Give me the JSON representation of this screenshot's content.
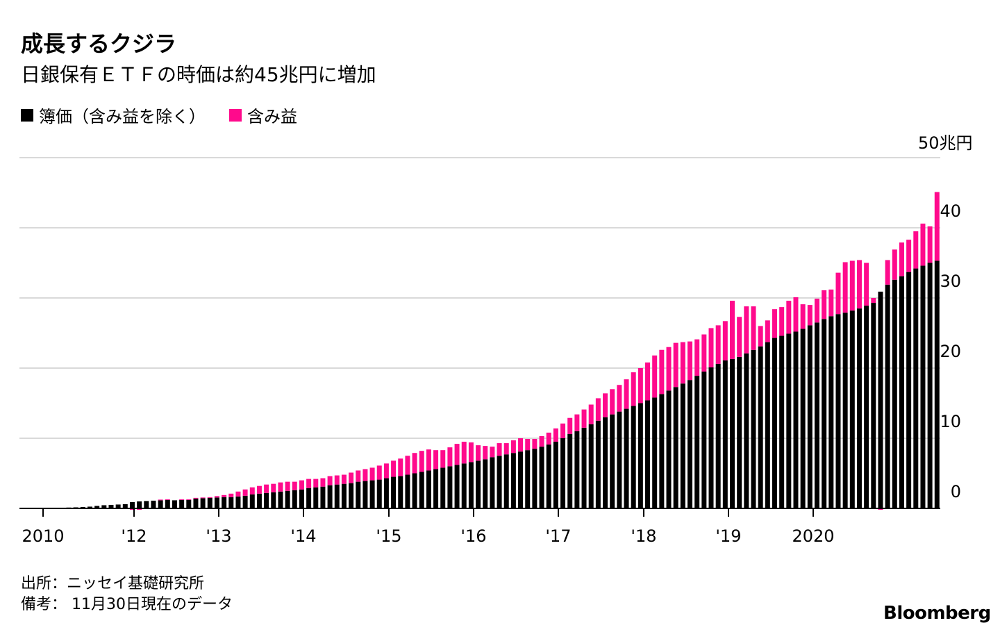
{
  "title": "成長するクジラ",
  "subtitle": "日銀保有ＥＴＦの時価は約45兆円に増加",
  "unit_label": "50兆円",
  "source_line": "出所：ニッセイ基礎研究所",
  "note_line": "備考： 11月30日現在のデータ",
  "logo": "Bloomberg",
  "colors": {
    "book": "#000000",
    "unrealized": "#ff0a8c",
    "grid": "#d9d9d9",
    "axis": "#000000"
  },
  "chart_data": {
    "type": "bar",
    "stacked": true,
    "ylim": [
      0,
      50
    ],
    "y_ticks": [
      0,
      10,
      20,
      30,
      40
    ],
    "x_tick_labels": [
      "2010",
      "'12",
      "'13",
      "'14",
      "'15",
      "'16",
      "'17",
      "'18",
      "'19",
      "2020"
    ],
    "legend_position": "top-left",
    "grid": true,
    "series": [
      {
        "name": "簿価（含み益を除く）",
        "values": [
          0.05,
          0.06,
          0.07,
          0.12,
          0.15,
          0.2,
          0.25,
          0.35,
          0.45,
          0.5,
          0.55,
          0.6,
          0.9,
          1.0,
          1.05,
          1.1,
          1.15,
          1.2,
          1.15,
          1.2,
          1.2,
          1.4,
          1.45,
          1.5,
          1.55,
          1.6,
          1.6,
          1.7,
          1.8,
          2.0,
          2.1,
          2.2,
          2.3,
          2.4,
          2.5,
          2.6,
          2.7,
          2.9,
          3.0,
          3.1,
          3.3,
          3.4,
          3.5,
          3.6,
          3.8,
          3.9,
          4.0,
          4.1,
          4.3,
          4.5,
          4.6,
          4.8,
          5.0,
          5.2,
          5.4,
          5.6,
          5.8,
          6.0,
          6.2,
          6.4,
          6.6,
          6.8,
          7.0,
          7.3,
          7.5,
          7.7,
          7.9,
          8.1,
          8.3,
          8.5,
          8.8,
          9.1,
          9.5,
          10.0,
          10.6,
          11.0,
          11.5,
          12.0,
          12.5,
          13.0,
          13.4,
          13.8,
          14.2,
          14.6,
          15.0,
          15.4,
          15.8,
          16.3,
          16.8,
          17.3,
          17.8,
          18.3,
          18.9,
          19.5,
          20.1,
          20.6,
          21.1,
          21.3,
          21.6,
          22.1,
          22.6,
          23.1,
          23.7,
          24.3,
          24.6,
          24.9,
          25.2,
          25.6,
          26.1,
          26.5,
          27.0,
          27.4,
          27.7,
          27.9,
          28.2,
          28.5,
          28.9,
          29.3,
          30.9,
          31.9,
          32.6,
          33.1,
          33.7,
          34.2,
          34.6,
          35.0,
          35.3
        ]
      },
      {
        "name": "含み益",
        "values": [
          0,
          0,
          0,
          0,
          0,
          0,
          0,
          0,
          0,
          0,
          0,
          0,
          -0.2,
          -0.2,
          -0.1,
          0,
          0.1,
          0.1,
          0,
          0.1,
          0.1,
          0.1,
          0.1,
          0.1,
          0.2,
          0.3,
          0.5,
          0.7,
          0.9,
          1.0,
          1.1,
          1.2,
          1.2,
          1.3,
          1.3,
          1.2,
          1.3,
          1.3,
          1.2,
          1.2,
          1.3,
          1.3,
          1.3,
          1.5,
          1.6,
          1.7,
          1.8,
          2.0,
          2.1,
          2.3,
          2.5,
          2.7,
          2.9,
          3.0,
          3.0,
          2.7,
          2.5,
          2.7,
          3.0,
          3.1,
          2.8,
          2.2,
          1.9,
          1.5,
          1.8,
          1.6,
          1.8,
          1.9,
          1.6,
          1.4,
          1.5,
          1.7,
          1.9,
          2.1,
          2.3,
          2.4,
          2.6,
          2.8,
          3.2,
          3.4,
          3.6,
          3.8,
          4.2,
          4.8,
          5.0,
          5.4,
          6.0,
          6.3,
          6.2,
          6.3,
          5.9,
          5.5,
          5.2,
          5.3,
          5.6,
          5.5,
          5.6,
          8.3,
          5.7,
          6.7,
          6.2,
          2.9,
          3.1,
          4.1,
          4.1,
          4.7,
          4.9,
          3.5,
          2.9,
          3.4,
          4.1,
          3.8,
          5.9,
          7.2,
          7.1,
          6.9,
          6.1,
          0.7,
          -0.2,
          3.5,
          4.3,
          4.8,
          4.6,
          5.3,
          6.0,
          5.2,
          9.8
        ]
      }
    ]
  }
}
